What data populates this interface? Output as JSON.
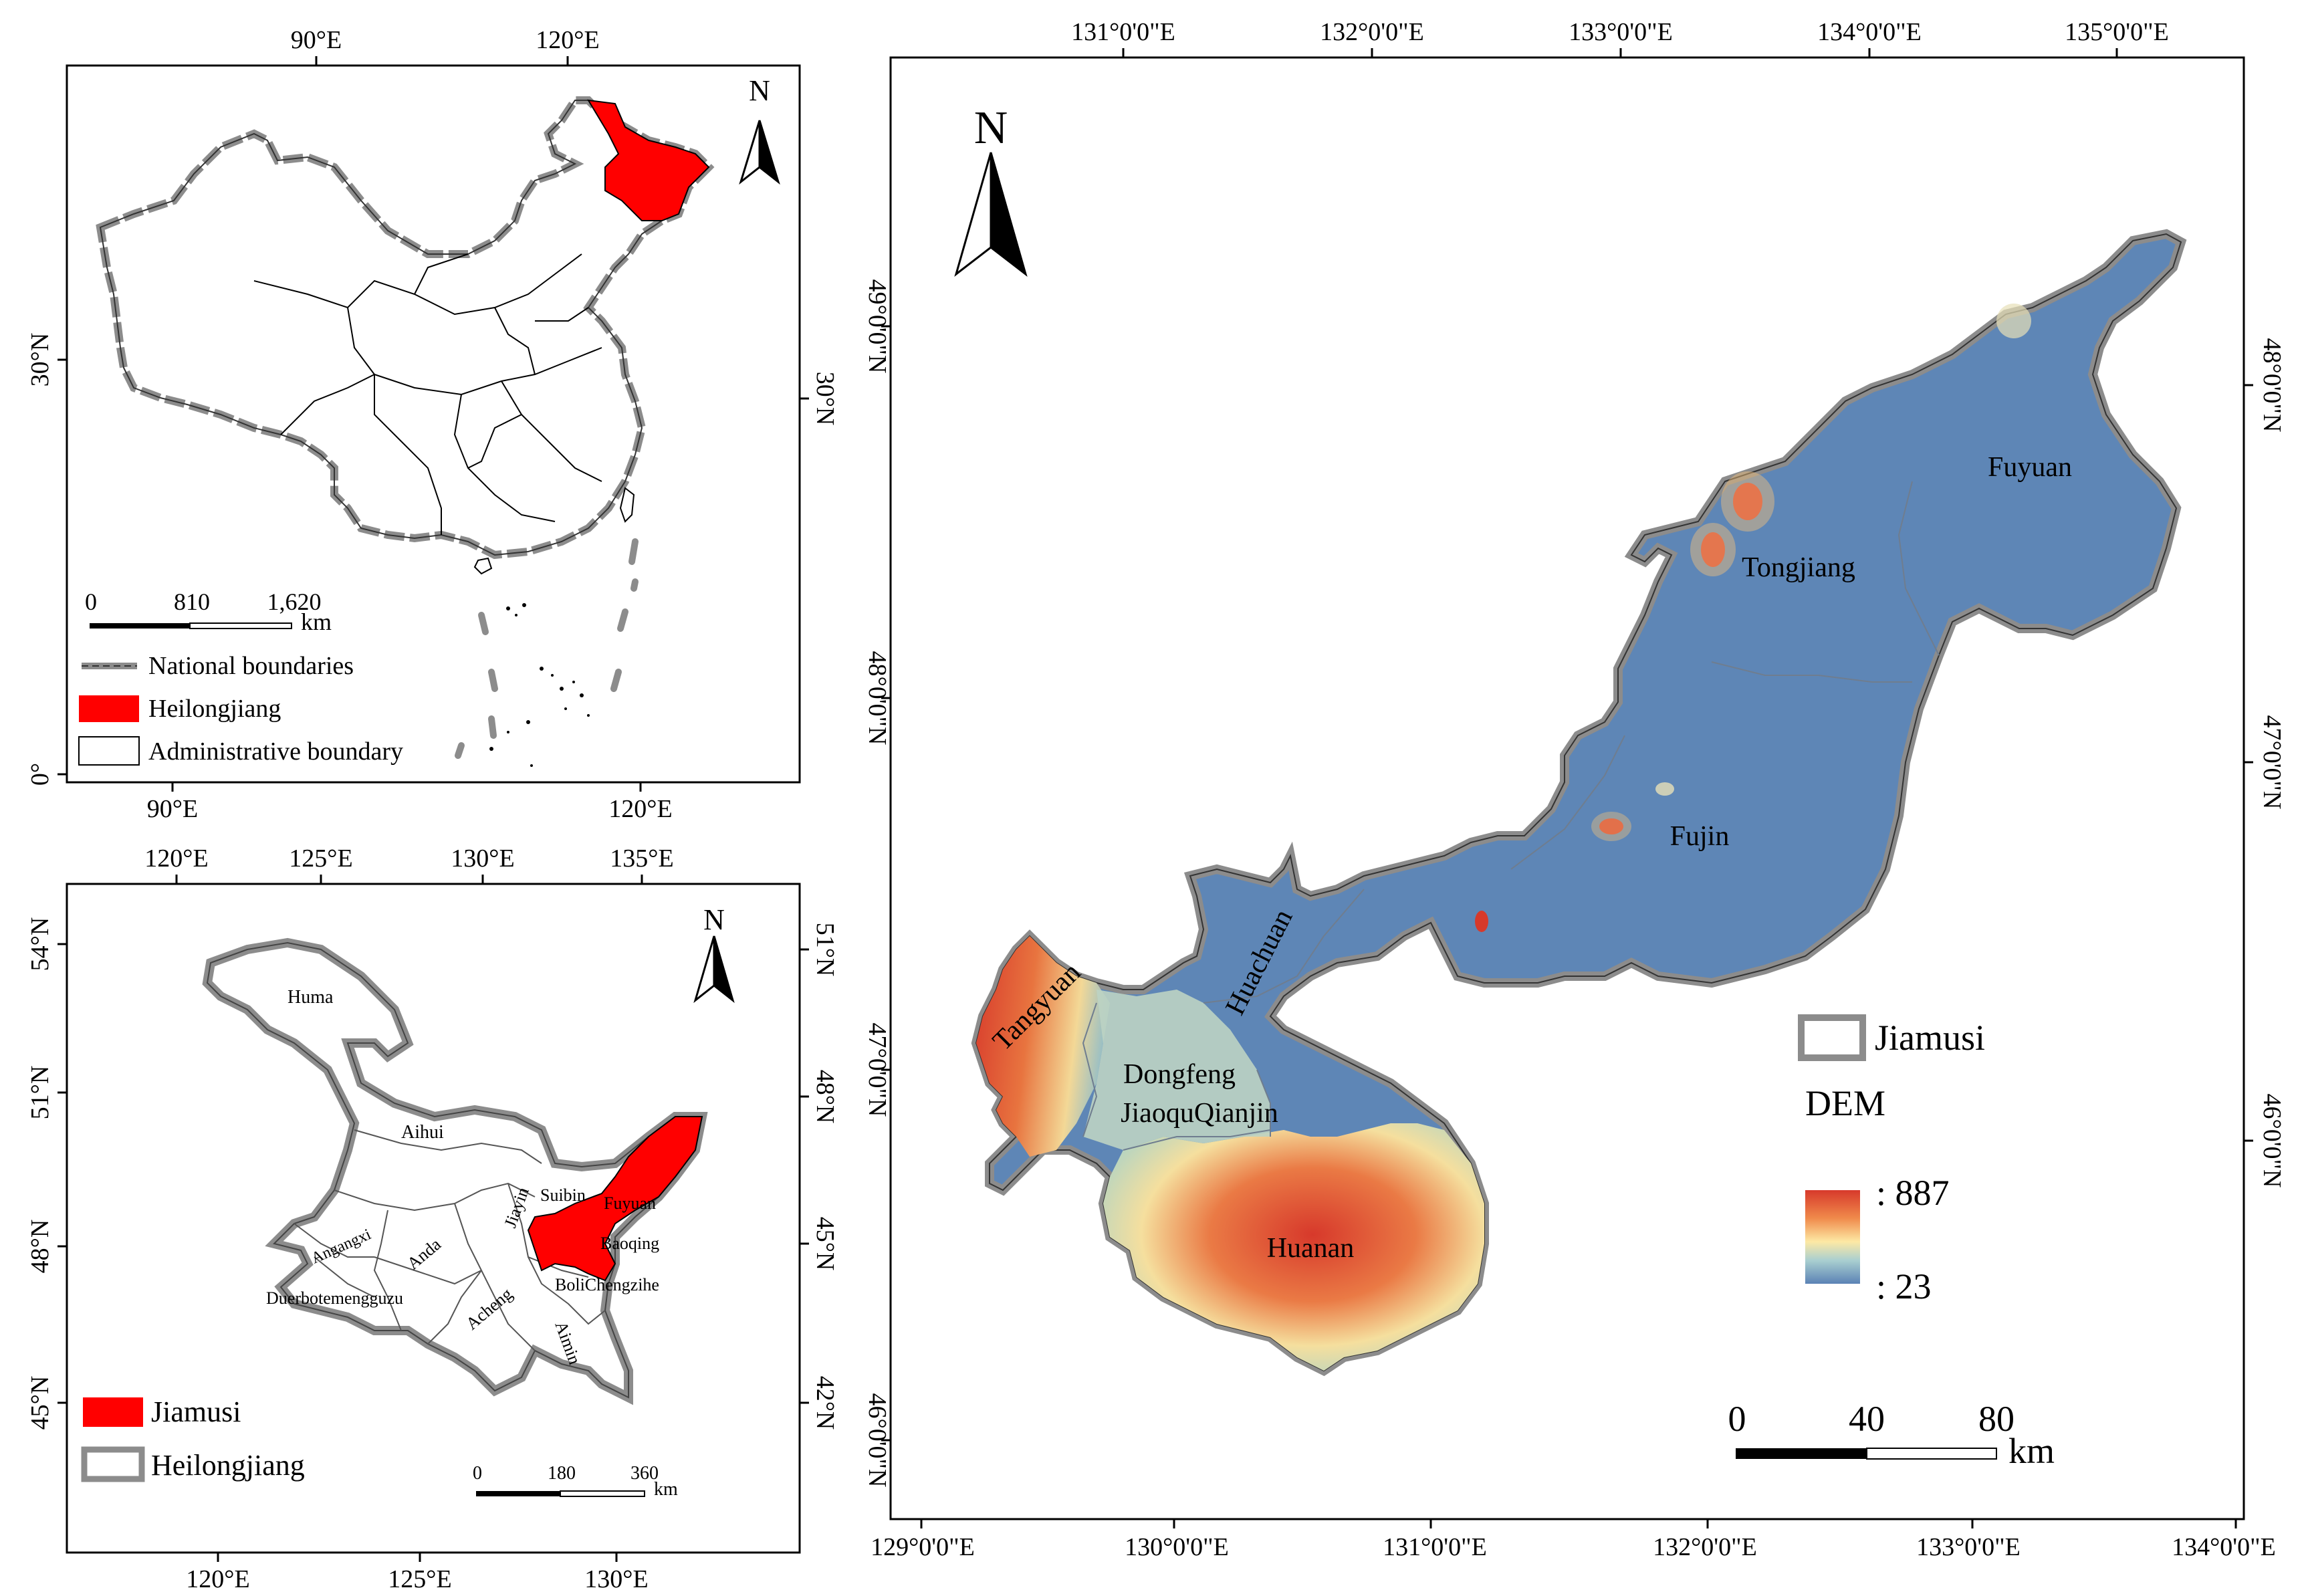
{
  "china_panel": {
    "top_ticks": [
      "90°E",
      "120°E"
    ],
    "bottom_ticks": [
      "90°E",
      "120°E"
    ],
    "left_ticks": [
      "30°N",
      "0°"
    ],
    "right_ticks": [
      "30°N"
    ],
    "north": "N",
    "scale": {
      "labels": [
        "0",
        "810",
        "1,620"
      ],
      "unit": "km"
    },
    "legend": [
      {
        "label": "National boundaries",
        "symbol": "dashed-gray-line"
      },
      {
        "label": "Heilongjiang",
        "symbol": "red-fill",
        "color": "#ff0000"
      },
      {
        "label": "Administrative boundary",
        "symbol": "white-box"
      }
    ]
  },
  "heilongjiang_panel": {
    "top_ticks": [
      "120°E",
      "125°E",
      "130°E",
      "135°E"
    ],
    "bottom_ticks": [
      "120°E",
      "125°E",
      "130°E"
    ],
    "left_ticks": [
      "54°N",
      "51°N",
      "48°N",
      "45°N"
    ],
    "right_ticks": [
      "51°N",
      "48°N",
      "45°N",
      "42°N"
    ],
    "north": "N",
    "city_labels": [
      "Huma",
      "Aihui",
      "Angangxi",
      "Anda",
      "Duerbotemengguzu",
      "Acheng",
      "Jiayin",
      "Suibin",
      "Fuyuan",
      "Baoqing",
      "BoliChengzihe",
      "Aimin"
    ],
    "scale": {
      "labels": [
        "0",
        "180",
        "360"
      ],
      "unit": "km"
    },
    "legend": [
      {
        "label": "Jiamusi",
        "symbol": "red-fill",
        "color": "#ff0000"
      },
      {
        "label": "Heilongjiang",
        "symbol": "gray-outline-box"
      }
    ]
  },
  "jiamusi_panel": {
    "top_ticks": [
      "131°0'0\"E",
      "132°0'0\"E",
      "133°0'0\"E",
      "134°0'0\"E",
      "135°0'0\"E"
    ],
    "bottom_ticks": [
      "129°0'0\"E",
      "130°0'0\"E",
      "131°0'0\"E",
      "132°0'0\"E",
      "133°0'0\"E",
      "134°0'0\"E"
    ],
    "left_ticks": [
      "49°0'0\"N",
      "48°0'0\"N",
      "47°0'0\"N",
      "46°0'0\"N"
    ],
    "right_ticks": [
      "48°0'0\"N",
      "47°0'0\"N",
      "46°0'0\"N"
    ],
    "north": "N",
    "county_labels": [
      "Fuyuan",
      "Tongjiang",
      "Fujin",
      "Huachuan",
      "Tangyuan",
      "Dongfeng",
      "JiaoquQianjin",
      "Huanan"
    ],
    "legend": {
      "boundary_label": "Jiamusi",
      "dem_title": "DEM",
      "high": ": 887",
      "low": ": 23",
      "colors": [
        "#d7392b",
        "#f08a4b",
        "#fde9a4",
        "#cfe7c4",
        "#8fb4c8",
        "#5b82b5"
      ]
    },
    "scale": {
      "labels": [
        "0",
        "40",
        "80"
      ],
      "unit": "km"
    }
  }
}
